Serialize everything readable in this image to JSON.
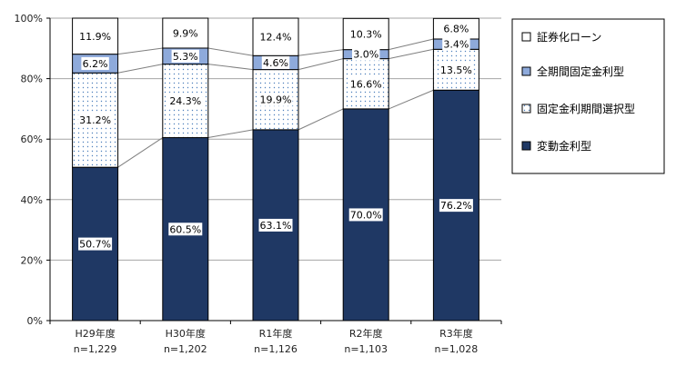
{
  "chart_data": {
    "type": "bar",
    "stacked": true,
    "percent_stacked": true,
    "categories": [
      "H29年度",
      "H30年度",
      "R1年度",
      "R2年度",
      "R3年度"
    ],
    "category_sublabels": [
      "n=1,229",
      "n=1,202",
      "n=1,126",
      "n=1,103",
      "n=1,028"
    ],
    "series": [
      {
        "name": "変動金利型",
        "values": [
          50.7,
          60.5,
          63.1,
          70.0,
          76.2
        ],
        "labels": [
          "50.7%",
          "60.5%",
          "63.1%",
          "70.0%",
          "76.2%"
        ],
        "fill": "solid",
        "color": "#1f3864"
      },
      {
        "name": "固定金利期間選択型",
        "values": [
          31.2,
          24.3,
          19.9,
          16.6,
          13.5
        ],
        "labels": [
          "31.2%",
          "24.3%",
          "19.9%",
          "16.6%",
          "13.5%"
        ],
        "fill": "dotted",
        "color": "#ffffff"
      },
      {
        "name": "全期間固定金利型",
        "values": [
          6.2,
          5.3,
          4.6,
          3.0,
          3.4
        ],
        "labels": [
          "6.2%",
          "5.3%",
          "4.6%",
          "3.0%",
          "3.4%"
        ],
        "fill": "solid",
        "color": "#8eaadb"
      },
      {
        "name": "証券化ローン",
        "values": [
          11.9,
          9.9,
          12.4,
          10.3,
          6.8
        ],
        "labels": [
          "11.9%",
          "9.9%",
          "12.4%",
          "10.3%",
          "6.8%"
        ],
        "fill": "solid",
        "color": "#ffffff"
      }
    ],
    "legend_order": [
      "証券化ローン",
      "全期間固定金利型",
      "固定金利期間選択型",
      "変動金利型"
    ],
    "ylim": [
      0,
      100
    ],
    "yticks": [
      0,
      20,
      40,
      60,
      80,
      100
    ],
    "ytick_labels": [
      "0%",
      "20%",
      "40%",
      "60%",
      "80%",
      "100%"
    ],
    "grid": true,
    "series_lines": true,
    "legend_position": "right"
  }
}
